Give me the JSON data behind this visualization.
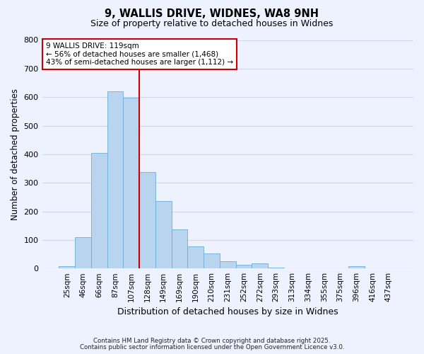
{
  "title": "9, WALLIS DRIVE, WIDNES, WA8 9NH",
  "subtitle": "Size of property relative to detached houses in Widnes",
  "xlabel": "Distribution of detached houses by size in Widnes",
  "ylabel": "Number of detached properties",
  "bar_labels": [
    "25sqm",
    "46sqm",
    "66sqm",
    "87sqm",
    "107sqm",
    "128sqm",
    "149sqm",
    "169sqm",
    "190sqm",
    "210sqm",
    "231sqm",
    "252sqm",
    "272sqm",
    "293sqm",
    "313sqm",
    "334sqm",
    "355sqm",
    "375sqm",
    "396sqm",
    "416sqm",
    "437sqm"
  ],
  "bar_values": [
    8,
    110,
    405,
    620,
    597,
    338,
    237,
    137,
    78,
    52,
    25,
    13,
    17,
    2,
    0,
    0,
    0,
    0,
    8,
    0,
    0
  ],
  "bar_color": "#b8d4ee",
  "bar_edge_color": "#6baed6",
  "vline_color": "#cc0000",
  "annotation_title": "9 WALLIS DRIVE: 119sqm",
  "annotation_line1": "← 56% of detached houses are smaller (1,468)",
  "annotation_line2": "43% of semi-detached houses are larger (1,112) →",
  "annotation_box_color": "white",
  "annotation_box_edge": "#cc0000",
  "ylim": [
    0,
    800
  ],
  "yticks": [
    0,
    100,
    200,
    300,
    400,
    500,
    600,
    700,
    800
  ],
  "background_color": "#eef2ff",
  "grid_color": "#d0d8f0",
  "footer1": "Contains HM Land Registry data © Crown copyright and database right 2025.",
  "footer2": "Contains public sector information licensed under the Open Government Licence v3.0."
}
